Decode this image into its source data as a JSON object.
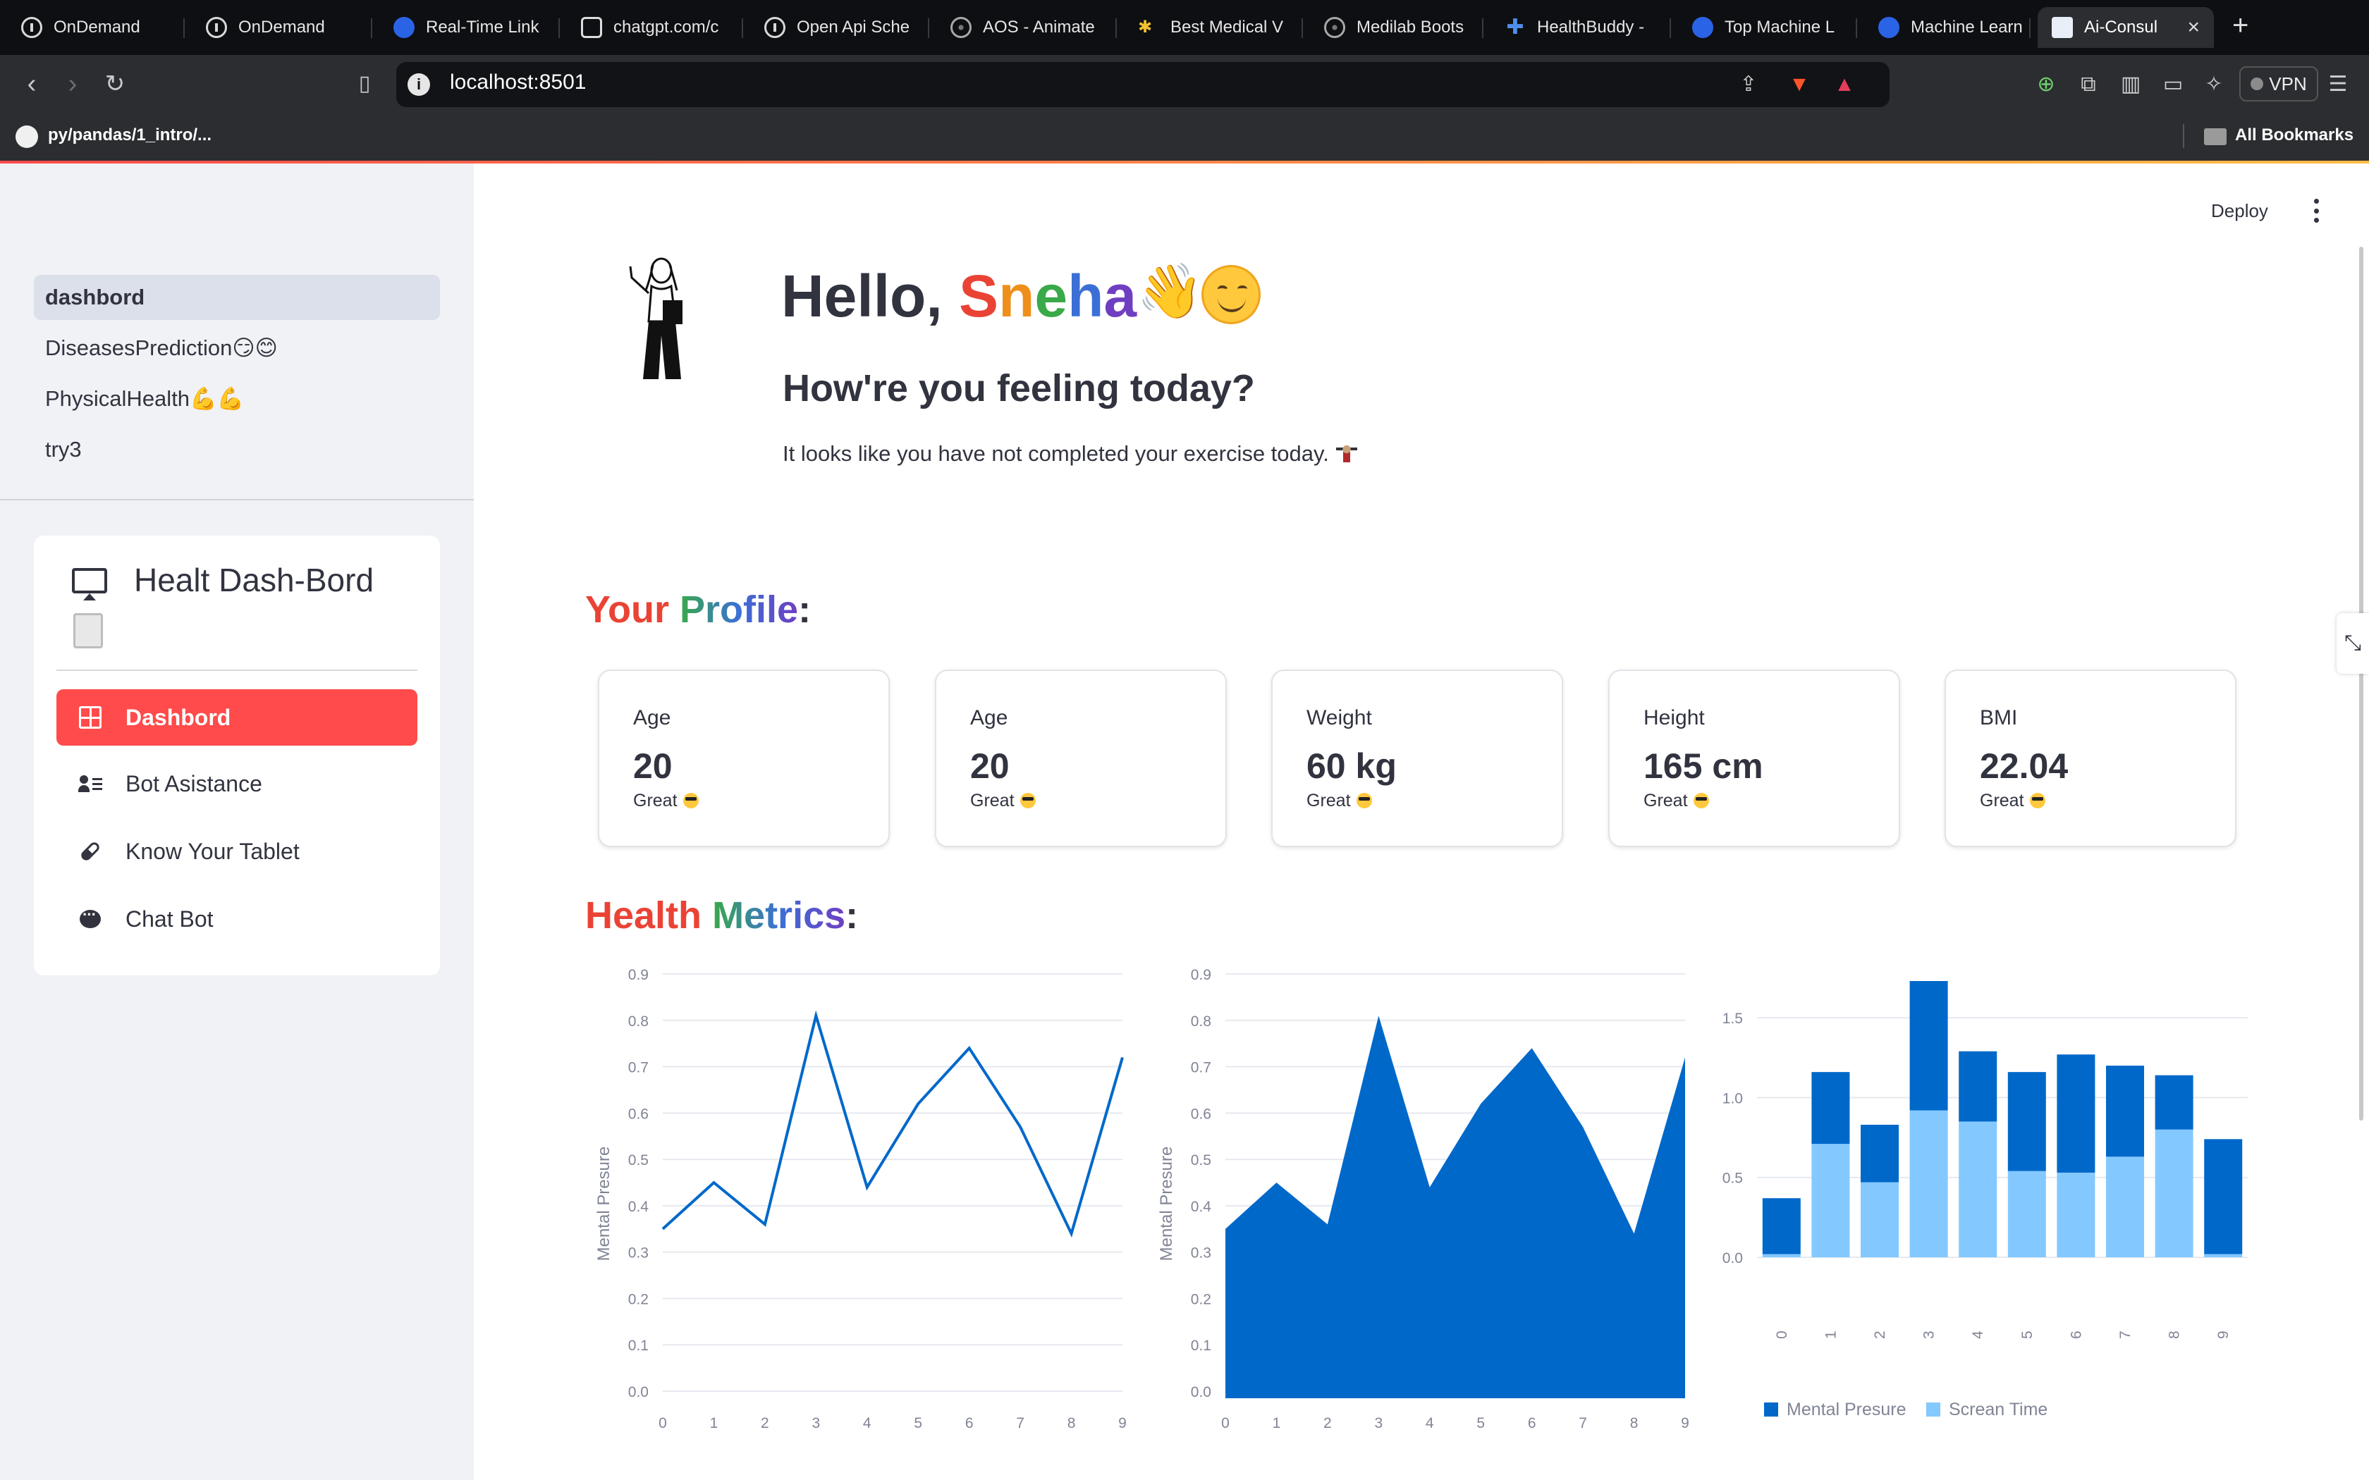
{
  "browser": {
    "tabs": [
      {
        "label": "OnDemand",
        "icon": "info-icon"
      },
      {
        "label": "OnDemand",
        "icon": "info-icon"
      },
      {
        "label": "Real-Time Link",
        "icon": "realtime-icon"
      },
      {
        "label": "chatgpt.com/c",
        "icon": "chatgpt-icon"
      },
      {
        "label": "Open Api Sche",
        "icon": "info-icon"
      },
      {
        "label": "AOS - Animate",
        "icon": "globe-icon"
      },
      {
        "label": "Best Medical V",
        "icon": "medical-icon"
      },
      {
        "label": "Medilab Boots",
        "icon": "globe-icon"
      },
      {
        "label": "HealthBuddy -",
        "icon": "healthbuddy-icon"
      },
      {
        "label": "Top Machine L",
        "icon": "c-icon"
      },
      {
        "label": "Machine Learn",
        "icon": "c-icon"
      },
      {
        "label": "Ai-Consul",
        "icon": "chart-icon"
      }
    ],
    "url": "localhost:8501",
    "vpn_label": "VPN",
    "bookmark_label": "py/pandas/1_intro/...",
    "all_bookmarks": "All Bookmarks"
  },
  "sidebar": {
    "pages": [
      {
        "label": "dashbord"
      },
      {
        "label": "DiseasesPrediction😏😊"
      },
      {
        "label": "PhysicalHealth💪💪"
      },
      {
        "label": "try3"
      }
    ],
    "menu_title": "Healt Dash-Bord",
    "menu_items": [
      {
        "label": "Dashbord",
        "icon": "grid-icon"
      },
      {
        "label": "Bot Asistance",
        "icon": "people-icon"
      },
      {
        "label": "Know Your Tablet",
        "icon": "pill-icon"
      },
      {
        "label": "Chat Bot",
        "icon": "chat-icon"
      }
    ]
  },
  "header": {
    "deploy_label": "Deploy"
  },
  "main": {
    "greeting_prefix": "Hello, ",
    "name_letters": [
      "S",
      "n",
      "e",
      "h",
      "a"
    ],
    "feeling": "How're you feeling today?",
    "exercise_note": "It looks like you have not completed your exercise today.",
    "profile_title": {
      "parts": [
        "Your",
        " ",
        "Profile"
      ],
      "suffix": ":"
    },
    "metrics_title": {
      "parts": [
        "Health",
        " ",
        "Metrics"
      ],
      "suffix": ":"
    },
    "profile_cards": [
      {
        "label": "Age",
        "value": "20",
        "delta": "Great"
      },
      {
        "label": "Age",
        "value": "20",
        "delta": "Great"
      },
      {
        "label": "Weight",
        "value": "60 kg",
        "delta": "Great"
      },
      {
        "label": "Height",
        "value": "165 cm",
        "delta": "Great"
      },
      {
        "label": "BMI",
        "value": "22.04",
        "delta": "Great"
      }
    ]
  },
  "colors": {
    "accent": "#ff4b4b",
    "chart_dark": "#0068c9",
    "chart_light": "#83c9ff",
    "text": "#31333f"
  },
  "chart_data": [
    {
      "type": "line",
      "x": [
        0,
        1,
        2,
        3,
        4,
        5,
        6,
        7,
        8,
        9
      ],
      "series": [
        {
          "values": [
            0.35,
            0.45,
            0.36,
            0.81,
            0.44,
            0.62,
            0.74,
            0.57,
            0.34,
            0.72
          ]
        }
      ],
      "ylabel": "Mental Presure",
      "ylim": [
        0,
        0.9
      ],
      "yticks": [
        "0.0",
        "0.1",
        "0.2",
        "0.3",
        "0.4",
        "0.5",
        "0.6",
        "0.7",
        "0.8",
        "0.9"
      ],
      "grid": true
    },
    {
      "type": "area",
      "x": [
        0,
        1,
        2,
        3,
        4,
        5,
        6,
        7,
        8,
        9
      ],
      "series": [
        {
          "values": [
            0.35,
            0.45,
            0.36,
            0.81,
            0.44,
            0.62,
            0.74,
            0.57,
            0.34,
            0.72
          ]
        }
      ],
      "ylabel": "Mental Presure",
      "ylim": [
        0,
        0.9
      ],
      "yticks": [
        "0.0",
        "0.1",
        "0.2",
        "0.3",
        "0.4",
        "0.5",
        "0.6",
        "0.7",
        "0.8",
        "0.9"
      ],
      "grid": true
    },
    {
      "type": "bar",
      "stacked": true,
      "categories": [
        "0",
        "1",
        "2",
        "3",
        "4",
        "5",
        "6",
        "7",
        "8",
        "9"
      ],
      "series": [
        {
          "name": "Mental Presure",
          "values": [
            0.35,
            0.45,
            0.36,
            0.81,
            0.44,
            0.62,
            0.74,
            0.57,
            0.34,
            0.72
          ]
        },
        {
          "name": "Screan Time",
          "values": [
            0.02,
            0.71,
            0.47,
            0.92,
            0.85,
            0.54,
            0.53,
            0.63,
            0.8,
            0.02
          ]
        }
      ],
      "ylim": [
        0,
        1.73
      ],
      "yticks": [
        "0.0",
        "0.5",
        "1.0",
        "1.5"
      ],
      "legend": "bottom",
      "grid": true
    }
  ]
}
